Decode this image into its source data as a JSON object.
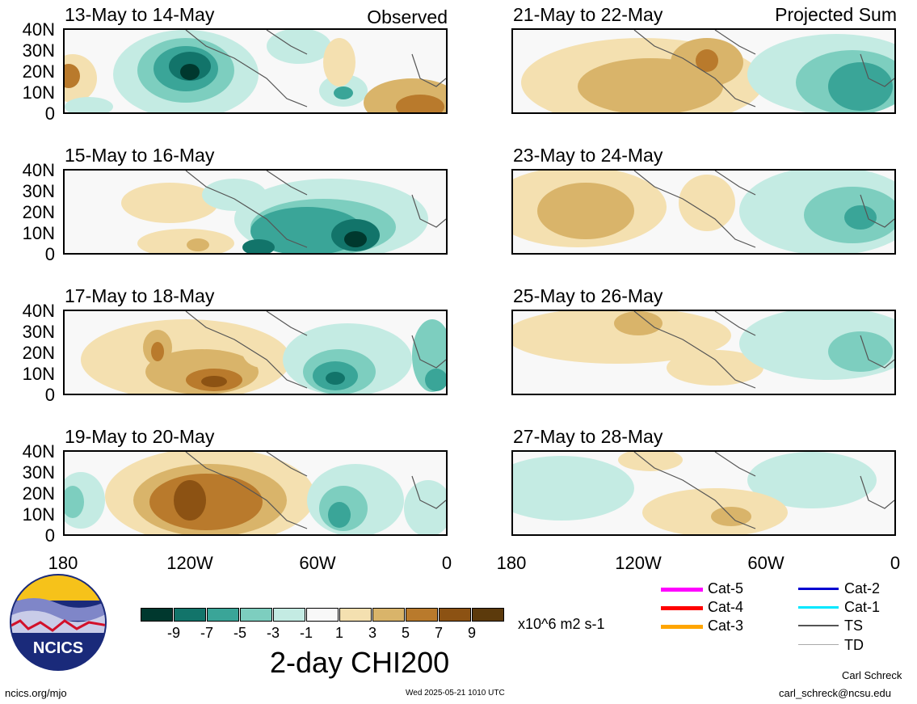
{
  "panels": [
    {
      "title": "13-May to 14-May",
      "tag": "Observed"
    },
    {
      "title": "15-May to 16-May",
      "tag": ""
    },
    {
      "title": "17-May to 18-May",
      "tag": ""
    },
    {
      "title": "19-May to 20-May",
      "tag": ""
    },
    {
      "title": "21-May to 22-May",
      "tag": "Projected Sum"
    },
    {
      "title": "23-May to 24-May",
      "tag": ""
    },
    {
      "title": "25-May to 26-May",
      "tag": ""
    },
    {
      "title": "27-May to 28-May",
      "tag": ""
    }
  ],
  "axes": {
    "y_ticks": [
      "40N",
      "30N",
      "20N",
      "10N",
      "0"
    ],
    "x_ticks": [
      "180",
      "120W",
      "60W",
      "0"
    ]
  },
  "colorbar": {
    "title": "2-day CHI200",
    "units": "x10^6 m2 s-1",
    "ticks": [
      "-9",
      "-7",
      "-5",
      "-3",
      "-1",
      "1",
      "3",
      "5",
      "7",
      "9"
    ],
    "colors": [
      "#00382e",
      "#12746a",
      "#3aa598",
      "#7dcebf",
      "#c4ebe3",
      "#f8f8f8",
      "#f4e0b0",
      "#d9b46a",
      "#b97a2c",
      "#8c5213",
      "#5c3a0c"
    ]
  },
  "legend": [
    {
      "label": "Cat-5",
      "color": "#ff00ff"
    },
    {
      "label": "Cat-4",
      "color": "#ff0000"
    },
    {
      "label": "Cat-3",
      "color": "#ffa500"
    },
    {
      "label": "Cat-2",
      "color": "#0000d0"
    },
    {
      "label": "Cat-1",
      "color": "#00e8ff"
    },
    {
      "label": "TS",
      "color": "#555555"
    },
    {
      "label": "TD",
      "color": "#aaaaaa"
    }
  ],
  "footer": {
    "logo_text": "NCICS",
    "url": "ncics.org/mjo",
    "timestamp": "Wed 2025-05-21 1010 UTC",
    "author": "Carl Schreck",
    "email": "carl_schreck@ncsu.edu"
  }
}
